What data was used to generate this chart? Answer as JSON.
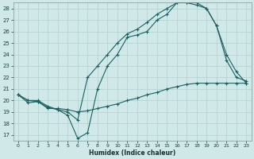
{
  "xlabel": "Humidex (Indice chaleur)",
  "bg_color": "#d0e8e8",
  "grid_color": "#b0d0d0",
  "line_color": "#1a6060",
  "xlim": [
    -0.5,
    23.5
  ],
  "ylim": [
    16.5,
    28.5
  ],
  "yticks": [
    17,
    18,
    19,
    20,
    21,
    22,
    23,
    24,
    25,
    26,
    27,
    28
  ],
  "xticks": [
    0,
    1,
    2,
    3,
    4,
    5,
    6,
    7,
    8,
    9,
    10,
    11,
    12,
    13,
    14,
    15,
    16,
    17,
    18,
    19,
    20,
    21,
    22,
    23
  ],
  "line1_x": [
    0,
    1,
    2,
    3,
    4,
    5,
    6,
    7,
    8,
    9,
    10,
    11,
    12,
    13,
    14,
    15,
    16,
    17,
    18,
    19,
    20,
    21,
    22,
    23
  ],
  "line1_y": [
    20.5,
    20.0,
    19.9,
    19.4,
    19.2,
    18.7,
    16.7,
    17.2,
    21.0,
    23.0,
    24.0,
    25.5,
    25.7,
    26.0,
    27.0,
    27.5,
    28.5,
    28.5,
    28.3,
    28.0,
    26.5,
    24.0,
    22.5,
    21.5
  ],
  "line2_x": [
    0,
    1,
    2,
    3,
    4,
    5,
    6,
    7,
    8,
    9,
    10,
    11,
    12,
    13,
    14,
    15,
    16,
    17,
    18,
    19,
    20,
    21,
    22,
    23
  ],
  "line2_y": [
    20.5,
    20.0,
    20.0,
    19.5,
    19.2,
    19.0,
    18.3,
    22.0,
    23.0,
    24.0,
    25.0,
    25.8,
    26.2,
    26.8,
    27.5,
    28.0,
    28.5,
    28.5,
    28.5,
    28.0,
    26.5,
    23.5,
    22.0,
    21.7
  ],
  "line3_x": [
    0,
    1,
    2,
    3,
    4,
    5,
    6,
    7,
    8,
    9,
    10,
    11,
    12,
    13,
    14,
    15,
    16,
    17,
    18,
    19,
    20,
    21,
    22,
    23
  ],
  "line3_y": [
    20.5,
    19.8,
    19.9,
    19.3,
    19.3,
    19.2,
    19.0,
    19.1,
    19.3,
    19.5,
    19.7,
    20.0,
    20.2,
    20.5,
    20.7,
    21.0,
    21.2,
    21.4,
    21.5,
    21.5,
    21.5,
    21.5,
    21.5,
    21.5
  ]
}
